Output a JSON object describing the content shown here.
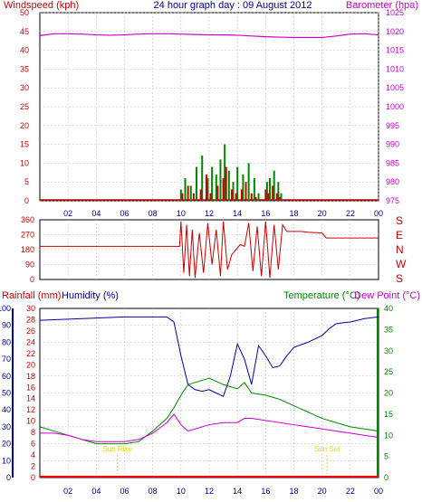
{
  "header": {
    "left_label": "Windspeed (kph)",
    "center_label": "24 hour graph day : 09 August 2012",
    "right_label": "Barometer (hpa)"
  },
  "colors": {
    "wind": "#cc0000",
    "gust": "#008800",
    "baro": "#cc00cc",
    "hum": "#0000aa",
    "temp": "#008800",
    "dew": "#cc00cc",
    "rain": "#ff0000",
    "sun": "#dddd00",
    "title": "#000099",
    "axis": "#000000",
    "grid": "#b8b8b8",
    "dirtext": "#cc0000"
  },
  "time_ticks": [
    "02",
    "04",
    "06",
    "08",
    "10",
    "12",
    "14",
    "16",
    "18",
    "20",
    "22",
    "00"
  ],
  "panel1": {
    "wind_axis": {
      "min": 0,
      "max": 50,
      "ticks": [
        "0",
        "5",
        "10",
        "15",
        "20",
        "25",
        "30",
        "35",
        "40",
        "45",
        "50"
      ]
    },
    "baro_axis": {
      "min": 975,
      "max": 1025,
      "ticks": [
        "975",
        "980",
        "985",
        "990",
        "995",
        "1000",
        "1005",
        "1010",
        "1015",
        "1020",
        "1025"
      ]
    }
  },
  "panel2": {
    "axis": {
      "min": 0,
      "max": 360,
      "ticks": [
        "0",
        "90",
        "180",
        "270",
        "360"
      ]
    },
    "compass": [
      "S",
      "E",
      "N",
      "W",
      "S"
    ]
  },
  "panel3": {
    "rainfall_label": "Rainfall (mm)",
    "humidity_label": "Humidity (%)",
    "temperature_label": "Temperature (°C)",
    "dewpoint_label": "Dew Point (°C)",
    "hum_axis": {
      "min": 0,
      "max": 100,
      "ticks": [
        "0",
        "10",
        "20",
        "30",
        "40",
        "50",
        "60",
        "70",
        "80",
        "90",
        "100"
      ]
    },
    "rain_axis": {
      "min": 0,
      "max": 30,
      "ticks": [
        "0",
        "2",
        "4",
        "6",
        "8",
        "10",
        "12",
        "14",
        "16",
        "18",
        "20",
        "22",
        "24",
        "26",
        "28",
        "30"
      ]
    },
    "temp_axis": {
      "min": 0,
      "max": 40,
      "ticks": [
        "0",
        "5",
        "10",
        "15",
        "20",
        "25",
        "30",
        "35",
        "40"
      ]
    },
    "sunrise_label": "Sun Rise",
    "sunset_label": "Sun Set"
  },
  "chart_data": [
    {
      "type": "bar",
      "title": "24 hour graph day : 09 August 2012",
      "ylabel": "Windspeed (kph)",
      "ylim": [
        0,
        50
      ],
      "series": [
        {
          "name": "Windspeed (kph)",
          "x": [
            10.1,
            10.5,
            10.9,
            11.4,
            11.8,
            12.1,
            12.6,
            13.0,
            13.2,
            13.6,
            13.9,
            14.3,
            14.6,
            15.0,
            15.3,
            16.0,
            16.2,
            16.5,
            16.8,
            17.0
          ],
          "values": [
            2,
            4,
            2,
            3,
            7,
            2,
            4,
            6,
            9,
            3,
            2,
            3,
            5,
            2,
            1,
            3,
            2,
            4,
            2,
            1
          ]
        },
        {
          "name": "Gust",
          "x": [
            10.0,
            10.3,
            10.7,
            11.1,
            11.5,
            11.9,
            12.2,
            12.5,
            12.8,
            13.1,
            13.4,
            13.7,
            14.0,
            14.4,
            14.8,
            15.2,
            15.5,
            16.1,
            16.3,
            16.6,
            16.9,
            17.1
          ],
          "values": [
            3,
            6,
            4,
            9,
            12,
            6,
            9,
            7,
            11,
            15,
            8,
            5,
            9,
            7,
            10,
            6,
            2,
            5,
            6,
            8,
            5,
            2
          ]
        }
      ]
    },
    {
      "type": "line",
      "ylabel": "Barometer (hpa)",
      "ylim": [
        975,
        1025
      ],
      "x": [
        0,
        1,
        2,
        3,
        4,
        5,
        6,
        7,
        8,
        9,
        10,
        11,
        12,
        13,
        14,
        15,
        16,
        17,
        18,
        19,
        20,
        21,
        22,
        23,
        24
      ],
      "series": [
        {
          "name": "Barometer (hpa)",
          "values": [
            1018.9,
            1019.4,
            1019.4,
            1019.3,
            1019.1,
            1019.0,
            1019.1,
            1019.3,
            1019.4,
            1019.4,
            1019.3,
            1019.2,
            1019.1,
            1019.1,
            1019.0,
            1018.8,
            1018.6,
            1018.5,
            1018.4,
            1018.4,
            1018.4,
            1018.8,
            1019.3,
            1019.4,
            1019.1
          ]
        }
      ]
    },
    {
      "type": "line",
      "ylabel": "Wind direction (degrees)",
      "ylim": [
        0,
        360
      ],
      "x": [
        0,
        9.9,
        10.0,
        10.2,
        10.4,
        10.6,
        10.8,
        11.0,
        11.3,
        11.6,
        11.9,
        12.2,
        12.5,
        12.8,
        13.0,
        13.3,
        13.6,
        13.9,
        14.2,
        14.5,
        14.8,
        15.1,
        15.4,
        15.7,
        16.0,
        16.3,
        16.6,
        16.9,
        17.2,
        17.5,
        18.5,
        19.0,
        20.0,
        20.3,
        22.0,
        24.0
      ],
      "series": [
        {
          "name": "Wind direction",
          "values": [
            200,
            200,
            350,
            40,
            330,
            20,
            300,
            10,
            280,
            40,
            340,
            90,
            300,
            20,
            350,
            60,
            150,
            180,
            210,
            200,
            340,
            50,
            320,
            20,
            350,
            10,
            330,
            60,
            330,
            290,
            290,
            285,
            280,
            250,
            250,
            250
          ]
        }
      ]
    },
    {
      "type": "line",
      "ylabel": "Humidity (%)",
      "ylim": [
        0,
        100
      ],
      "x": [
        0,
        6,
        9.0,
        9.5,
        10.0,
        10.5,
        11.0,
        11.5,
        12.0,
        12.5,
        13.0,
        13.5,
        14.0,
        14.5,
        15.0,
        15.5,
        16.0,
        16.5,
        17.0,
        17.5,
        18.0,
        19.0,
        20.0,
        20.5,
        21.0,
        22.0,
        23.0,
        24.0
      ],
      "series": [
        {
          "name": "Humidity (%)",
          "values": [
            93,
            95,
            95,
            92,
            72,
            55,
            52,
            51,
            52,
            50,
            48,
            60,
            79,
            70,
            55,
            78,
            72,
            65,
            66,
            72,
            77,
            80,
            84,
            88,
            91,
            92,
            94,
            95
          ]
        }
      ]
    },
    {
      "type": "line",
      "ylabel": "Temperature (°C)",
      "ylim": [
        0,
        40
      ],
      "x": [
        0,
        1,
        2,
        3,
        4,
        5,
        6,
        7,
        8,
        9,
        9.5,
        10.0,
        10.5,
        11,
        12,
        13,
        14,
        14.5,
        15,
        16,
        17,
        18,
        19,
        20,
        21,
        22,
        23,
        24
      ],
      "series": [
        {
          "name": "Temperature (°C)",
          "values": [
            12.0,
            11.0,
            10.0,
            9.0,
            8.0,
            8.0,
            8.0,
            8.5,
            11.0,
            14.0,
            16.5,
            19.5,
            22.0,
            22.5,
            23.5,
            22.0,
            21.0,
            22.5,
            20.0,
            19.5,
            18.5,
            17.0,
            15.5,
            14.0,
            13.0,
            12.0,
            11.5,
            11.0
          ]
        },
        {
          "name": "Dew Point (°C)",
          "values": [
            10.5,
            10.5,
            10.0,
            9.0,
            8.5,
            8.5,
            8.5,
            9.0,
            10.5,
            13.0,
            15.0,
            12.5,
            11.0,
            11.5,
            12.5,
            13.0,
            13.0,
            14.0,
            14.0,
            13.5,
            13.0,
            12.5,
            12.0,
            11.5,
            11.0,
            10.5,
            10.0,
            9.5
          ]
        }
      ]
    },
    {
      "type": "line",
      "ylabel": "Rainfall (mm)",
      "ylim": [
        0,
        30
      ],
      "x": [
        0,
        24
      ],
      "series": [
        {
          "name": "Rainfall (mm)",
          "values": [
            0,
            0
          ]
        }
      ]
    }
  ]
}
